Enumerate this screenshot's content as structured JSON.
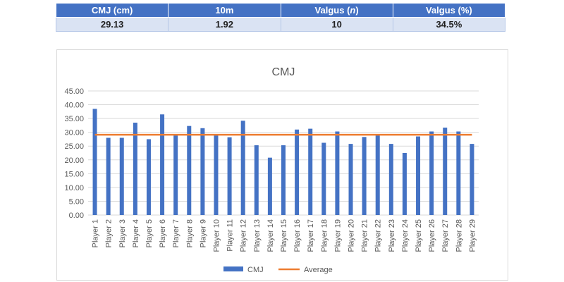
{
  "table": {
    "headers": [
      "CMJ (cm)",
      "10m",
      "Valgus (n)",
      "Valgus (%)"
    ],
    "values": [
      "29.13",
      "1.92",
      "10",
      "34.5%"
    ]
  },
  "chart_data": {
    "type": "bar",
    "title": "CMJ",
    "categories": [
      "Player 1",
      "Player 2",
      "Player 3",
      "Player 4",
      "Player 5",
      "Player 6",
      "Player 7",
      "Player 8",
      "Player 9",
      "Player 10",
      "Player 11",
      "Player 12",
      "Player 13",
      "Player 14",
      "Player 15",
      "Player 16",
      "Player 17",
      "Player 18",
      "Player 19",
      "Player 20",
      "Player 21",
      "Player 22",
      "Player 23",
      "Player 24",
      "Player 25",
      "Player 26",
      "Player 27",
      "Player 28",
      "Player 29"
    ],
    "series": [
      {
        "name": "CMJ",
        "type": "bar",
        "color": "#4472c4",
        "values": [
          38.5,
          28.0,
          28.0,
          33.5,
          27.5,
          36.5,
          29.0,
          32.3,
          31.5,
          29.0,
          28.2,
          34.2,
          25.3,
          20.8,
          25.3,
          31.0,
          31.3,
          26.2,
          30.3,
          25.8,
          28.3,
          29.0,
          25.8,
          22.5,
          28.5,
          30.3,
          31.7,
          30.3,
          25.8
        ]
      },
      {
        "name": "Average",
        "type": "line",
        "color": "#ed7d31",
        "value": 29.13
      }
    ],
    "ylim": [
      0,
      45
    ],
    "yticks": [
      "0.00",
      "5.00",
      "10.00",
      "15.00",
      "20.00",
      "25.00",
      "30.00",
      "35.00",
      "40.00",
      "45.00"
    ],
    "grid": true,
    "legend": "bottom"
  }
}
